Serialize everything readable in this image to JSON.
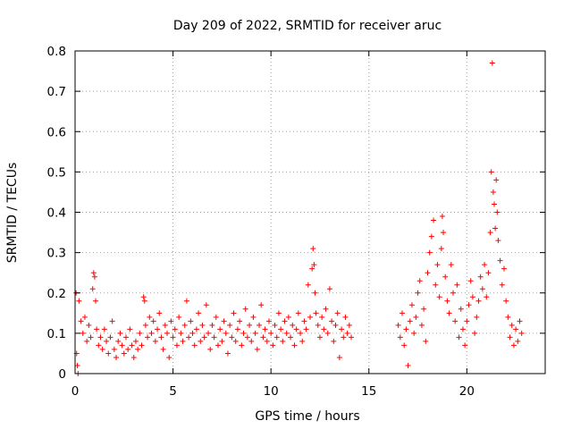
{
  "chart_data": {
    "type": "scatter",
    "title": "Day 209 of 2022, SRMTID for receiver aruc",
    "xlabel": "GPS time / hours",
    "ylabel": "SRMTID / TECUs",
    "xlim": [
      0,
      24
    ],
    "ylim": [
      0,
      0.8
    ],
    "xticks": [
      0,
      5,
      10,
      15,
      20
    ],
    "yticks": [
      0,
      0.1,
      0.2,
      0.3,
      0.4,
      0.5,
      0.6,
      0.7,
      0.8
    ],
    "grid": true,
    "marker": "+",
    "marker_color": "#ff0000",
    "series": [
      {
        "name": "SRMTID",
        "points": [
          [
            0.05,
            0.2
          ],
          [
            0.08,
            0.05
          ],
          [
            0.12,
            0.02
          ],
          [
            0.15,
            0.0
          ],
          [
            0.2,
            0.18
          ],
          [
            0.3,
            0.13
          ],
          [
            0.4,
            0.1
          ],
          [
            0.5,
            0.14
          ],
          [
            0.6,
            0.08
          ],
          [
            0.7,
            0.12
          ],
          [
            0.8,
            0.09
          ],
          [
            0.9,
            0.21
          ],
          [
            0.95,
            0.25
          ],
          [
            1.0,
            0.24
          ],
          [
            1.05,
            0.18
          ],
          [
            1.1,
            0.11
          ],
          [
            1.2,
            0.07
          ],
          [
            1.3,
            0.09
          ],
          [
            1.4,
            0.06
          ],
          [
            1.5,
            0.11
          ],
          [
            1.6,
            0.08
          ],
          [
            1.7,
            0.05
          ],
          [
            1.8,
            0.09
          ],
          [
            1.9,
            0.13
          ],
          [
            2.0,
            0.06
          ],
          [
            2.1,
            0.04
          ],
          [
            2.2,
            0.08
          ],
          [
            2.3,
            0.1
          ],
          [
            2.4,
            0.07
          ],
          [
            2.5,
            0.05
          ],
          [
            2.6,
            0.09
          ],
          [
            2.7,
            0.06
          ],
          [
            2.8,
            0.11
          ],
          [
            2.9,
            0.07
          ],
          [
            3.0,
            0.04
          ],
          [
            3.1,
            0.08
          ],
          [
            3.2,
            0.06
          ],
          [
            3.3,
            0.1
          ],
          [
            3.4,
            0.07
          ],
          [
            3.5,
            0.19
          ],
          [
            3.55,
            0.18
          ],
          [
            3.6,
            0.12
          ],
          [
            3.7,
            0.09
          ],
          [
            3.8,
            0.14
          ],
          [
            3.9,
            0.1
          ],
          [
            4.0,
            0.13
          ],
          [
            4.1,
            0.08
          ],
          [
            4.2,
            0.11
          ],
          [
            4.3,
            0.15
          ],
          [
            4.4,
            0.09
          ],
          [
            4.5,
            0.06
          ],
          [
            4.6,
            0.12
          ],
          [
            4.7,
            0.1
          ],
          [
            4.8,
            0.04
          ],
          [
            4.9,
            0.13
          ],
          [
            5.0,
            0.09
          ],
          [
            5.1,
            0.11
          ],
          [
            5.2,
            0.07
          ],
          [
            5.3,
            0.14
          ],
          [
            5.4,
            0.1
          ],
          [
            5.5,
            0.08
          ],
          [
            5.6,
            0.12
          ],
          [
            5.7,
            0.18
          ],
          [
            5.8,
            0.09
          ],
          [
            5.9,
            0.13
          ],
          [
            6.0,
            0.1
          ],
          [
            6.1,
            0.07
          ],
          [
            6.2,
            0.11
          ],
          [
            6.3,
            0.15
          ],
          [
            6.4,
            0.08
          ],
          [
            6.5,
            0.12
          ],
          [
            6.6,
            0.09
          ],
          [
            6.7,
            0.17
          ],
          [
            6.8,
            0.1
          ],
          [
            6.9,
            0.06
          ],
          [
            7.0,
            0.12
          ],
          [
            7.1,
            0.09
          ],
          [
            7.2,
            0.14
          ],
          [
            7.3,
            0.07
          ],
          [
            7.4,
            0.11
          ],
          [
            7.5,
            0.08
          ],
          [
            7.6,
            0.13
          ],
          [
            7.7,
            0.1
          ],
          [
            7.8,
            0.05
          ],
          [
            7.9,
            0.12
          ],
          [
            8.0,
            0.09
          ],
          [
            8.1,
            0.15
          ],
          [
            8.2,
            0.08
          ],
          [
            8.3,
            0.11
          ],
          [
            8.4,
            0.13
          ],
          [
            8.5,
            0.07
          ],
          [
            8.6,
            0.1
          ],
          [
            8.7,
            0.16
          ],
          [
            8.8,
            0.09
          ],
          [
            8.9,
            0.12
          ],
          [
            9.0,
            0.08
          ],
          [
            9.1,
            0.14
          ],
          [
            9.2,
            0.1
          ],
          [
            9.3,
            0.06
          ],
          [
            9.4,
            0.12
          ],
          [
            9.5,
            0.17
          ],
          [
            9.6,
            0.09
          ],
          [
            9.7,
            0.11
          ],
          [
            9.8,
            0.08
          ],
          [
            9.9,
            0.13
          ],
          [
            10.0,
            0.1
          ],
          [
            10.1,
            0.07
          ],
          [
            10.2,
            0.12
          ],
          [
            10.3,
            0.09
          ],
          [
            10.4,
            0.15
          ],
          [
            10.5,
            0.11
          ],
          [
            10.6,
            0.08
          ],
          [
            10.7,
            0.13
          ],
          [
            10.8,
            0.1
          ],
          [
            10.9,
            0.14
          ],
          [
            11.0,
            0.09
          ],
          [
            11.1,
            0.12
          ],
          [
            11.2,
            0.07
          ],
          [
            11.3,
            0.11
          ],
          [
            11.4,
            0.15
          ],
          [
            11.5,
            0.1
          ],
          [
            11.6,
            0.08
          ],
          [
            11.7,
            0.13
          ],
          [
            11.8,
            0.11
          ],
          [
            11.9,
            0.22
          ],
          [
            12.0,
            0.14
          ],
          [
            12.1,
            0.26
          ],
          [
            12.15,
            0.31
          ],
          [
            12.2,
            0.27
          ],
          [
            12.25,
            0.2
          ],
          [
            12.3,
            0.15
          ],
          [
            12.4,
            0.12
          ],
          [
            12.5,
            0.09
          ],
          [
            12.6,
            0.14
          ],
          [
            12.7,
            0.11
          ],
          [
            12.8,
            0.16
          ],
          [
            12.9,
            0.1
          ],
          [
            13.0,
            0.21
          ],
          [
            13.1,
            0.13
          ],
          [
            13.2,
            0.08
          ],
          [
            13.3,
            0.12
          ],
          [
            13.4,
            0.15
          ],
          [
            13.5,
            0.04
          ],
          [
            13.6,
            0.11
          ],
          [
            13.7,
            0.09
          ],
          [
            13.8,
            0.14
          ],
          [
            13.9,
            0.1
          ],
          [
            14.0,
            0.12
          ],
          [
            14.1,
            0.09
          ],
          [
            16.5,
            0.12
          ],
          [
            16.6,
            0.09
          ],
          [
            16.7,
            0.15
          ],
          [
            16.8,
            0.07
          ],
          [
            16.9,
            0.11
          ],
          [
            17.0,
            0.02
          ],
          [
            17.1,
            0.13
          ],
          [
            17.2,
            0.17
          ],
          [
            17.3,
            0.1
          ],
          [
            17.4,
            0.14
          ],
          [
            17.5,
            0.2
          ],
          [
            17.6,
            0.23
          ],
          [
            17.7,
            0.12
          ],
          [
            17.8,
            0.16
          ],
          [
            17.9,
            0.08
          ],
          [
            18.0,
            0.25
          ],
          [
            18.1,
            0.3
          ],
          [
            18.2,
            0.34
          ],
          [
            18.3,
            0.38
          ],
          [
            18.4,
            0.22
          ],
          [
            18.5,
            0.27
          ],
          [
            18.6,
            0.19
          ],
          [
            18.7,
            0.31
          ],
          [
            18.75,
            0.39
          ],
          [
            18.8,
            0.35
          ],
          [
            18.9,
            0.24
          ],
          [
            19.0,
            0.18
          ],
          [
            19.1,
            0.15
          ],
          [
            19.2,
            0.27
          ],
          [
            19.3,
            0.2
          ],
          [
            19.4,
            0.13
          ],
          [
            19.5,
            0.22
          ],
          [
            19.6,
            0.09
          ],
          [
            19.7,
            0.16
          ],
          [
            19.8,
            0.11
          ],
          [
            19.9,
            0.07
          ],
          [
            20.0,
            0.13
          ],
          [
            20.1,
            0.17
          ],
          [
            20.2,
            0.23
          ],
          [
            20.3,
            0.19
          ],
          [
            20.4,
            0.1
          ],
          [
            20.5,
            0.14
          ],
          [
            20.6,
            0.18
          ],
          [
            20.7,
            0.24
          ],
          [
            20.8,
            0.21
          ],
          [
            20.9,
            0.27
          ],
          [
            21.0,
            0.19
          ],
          [
            21.1,
            0.25
          ],
          [
            21.2,
            0.35
          ],
          [
            21.25,
            0.5
          ],
          [
            21.3,
            0.77
          ],
          [
            21.35,
            0.45
          ],
          [
            21.4,
            0.42
          ],
          [
            21.45,
            0.36
          ],
          [
            21.5,
            0.48
          ],
          [
            21.55,
            0.4
          ],
          [
            21.6,
            0.33
          ],
          [
            21.7,
            0.28
          ],
          [
            21.8,
            0.22
          ],
          [
            21.9,
            0.26
          ],
          [
            22.0,
            0.18
          ],
          [
            22.1,
            0.14
          ],
          [
            22.2,
            0.09
          ],
          [
            22.3,
            0.12
          ],
          [
            22.4,
            0.07
          ],
          [
            22.5,
            0.11
          ],
          [
            22.6,
            0.08
          ],
          [
            22.7,
            0.13
          ],
          [
            22.8,
            0.1
          ]
        ]
      }
    ]
  }
}
